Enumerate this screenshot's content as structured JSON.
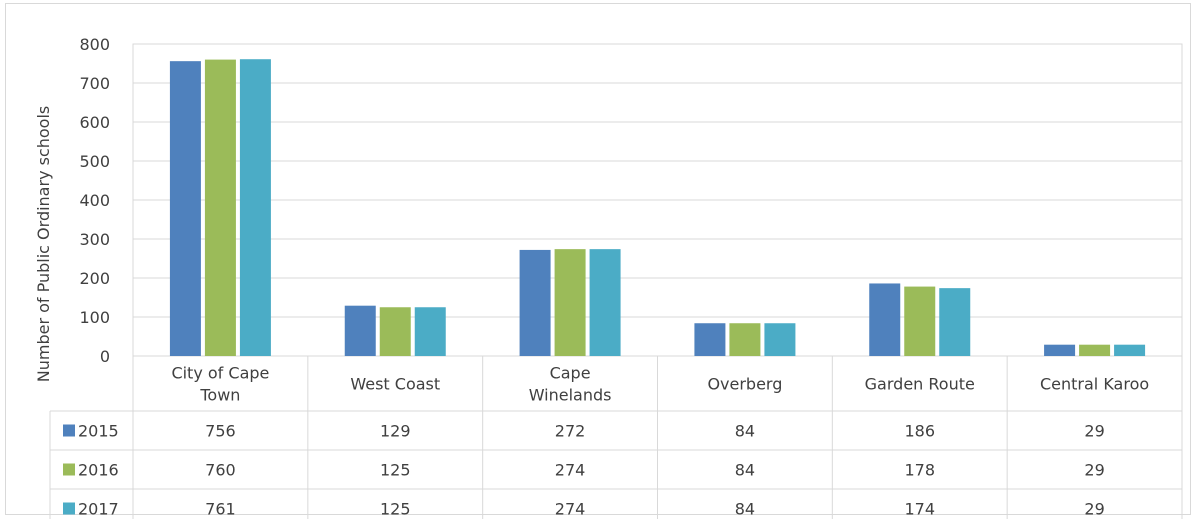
{
  "chart_data": {
    "type": "bar",
    "title": "",
    "xlabel": "",
    "ylabel": "Number of Public Ordinary schools",
    "ylim": [
      0,
      800
    ],
    "yticks": [
      0,
      100,
      200,
      300,
      400,
      500,
      600,
      700,
      800
    ],
    "grid": true,
    "legend": "data-table",
    "categories": [
      [
        "City of Cape",
        "Town"
      ],
      [
        "West Coast"
      ],
      [
        "Cape",
        "Winelands"
      ],
      [
        "Overberg"
      ],
      [
        "Garden Route"
      ],
      [
        "Central Karoo"
      ]
    ],
    "series": [
      {
        "name": "2015",
        "color": "#4f81bd",
        "values": [
          756,
          129,
          272,
          84,
          186,
          29
        ]
      },
      {
        "name": "2016",
        "color": "#9bbb59",
        "values": [
          760,
          125,
          274,
          84,
          178,
          29
        ]
      },
      {
        "name": "2017",
        "color": "#4bacc6",
        "values": [
          761,
          125,
          274,
          84,
          174,
          29
        ]
      }
    ]
  }
}
